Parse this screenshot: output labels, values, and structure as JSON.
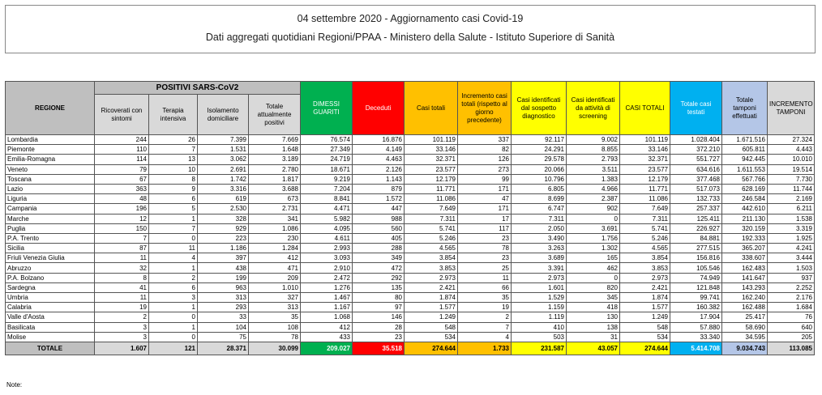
{
  "header": {
    "title": "04 settembre 2020 - Aggiornamento casi Covid-19",
    "subtitle": "Dati aggregati quotidiani Regioni/PPAA - Ministero della Salute - Istituto Superiore di Sanità"
  },
  "table": {
    "region_header": "REGIONE",
    "group_header": "POSITIVI SARS-CoV2",
    "columns": [
      "Ricoverati con sintomi",
      "Terapia intensiva",
      "Isolamento domiciliare",
      "Totale attualmente positivi",
      "DIMESSI GUARITI",
      "Deceduti",
      "Casi totali",
      "Incremento casi totali (rispetto al giorno precedente)",
      "Casi identificati dal sospetto diagnostico",
      "Casi identificati da attività di screening",
      "CASI TOTALI",
      "Totale casi testati",
      "Totale tamponi effettuati",
      "INCREMENTO TAMPONI"
    ],
    "rows": [
      [
        "Lombardia",
        "244",
        "26",
        "7.399",
        "7.669",
        "76.574",
        "16.876",
        "101.119",
        "337",
        "92.117",
        "9.002",
        "101.119",
        "1.028.404",
        "1.671.516",
        "27.324"
      ],
      [
        "Piemonte",
        "110",
        "7",
        "1.531",
        "1.648",
        "27.349",
        "4.149",
        "33.146",
        "82",
        "24.291",
        "8.855",
        "33.146",
        "372.210",
        "605.811",
        "4.443"
      ],
      [
        "Emilia-Romagna",
        "114",
        "13",
        "3.062",
        "3.189",
        "24.719",
        "4.463",
        "32.371",
        "126",
        "29.578",
        "2.793",
        "32.371",
        "551.727",
        "942.445",
        "10.010"
      ],
      [
        "Veneto",
        "79",
        "10",
        "2.691",
        "2.780",
        "18.671",
        "2.126",
        "23.577",
        "273",
        "20.066",
        "3.511",
        "23.577",
        "634.616",
        "1.611.553",
        "19.514"
      ],
      [
        "Toscana",
        "67",
        "8",
        "1.742",
        "1.817",
        "9.219",
        "1.143",
        "12.179",
        "99",
        "10.796",
        "1.383",
        "12.179",
        "377.468",
        "567.766",
        "7.730"
      ],
      [
        "Lazio",
        "363",
        "9",
        "3.316",
        "3.688",
        "7.204",
        "879",
        "11.771",
        "171",
        "6.805",
        "4.966",
        "11.771",
        "517.073",
        "628.169",
        "11.744"
      ],
      [
        "Liguria",
        "48",
        "6",
        "619",
        "673",
        "8.841",
        "1.572",
        "11.086",
        "47",
        "8.699",
        "2.387",
        "11.086",
        "132.733",
        "246.584",
        "2.169"
      ],
      [
        "Campania",
        "196",
        "5",
        "2.530",
        "2.731",
        "4.471",
        "447",
        "7.649",
        "171",
        "6.747",
        "902",
        "7.649",
        "257.337",
        "442.610",
        "6.211"
      ],
      [
        "Marche",
        "12",
        "1",
        "328",
        "341",
        "5.982",
        "988",
        "7.311",
        "17",
        "7.311",
        "0",
        "7.311",
        "125.411",
        "211.130",
        "1.538"
      ],
      [
        "Puglia",
        "150",
        "7",
        "929",
        "1.086",
        "4.095",
        "560",
        "5.741",
        "117",
        "2.050",
        "3.691",
        "5.741",
        "226.927",
        "320.159",
        "3.319"
      ],
      [
        "P.A. Trento",
        "7",
        "0",
        "223",
        "230",
        "4.611",
        "405",
        "5.246",
        "23",
        "3.490",
        "1.756",
        "5.246",
        "84.881",
        "192.333",
        "1.925"
      ],
      [
        "Sicilia",
        "87",
        "11",
        "1.186",
        "1.284",
        "2.993",
        "288",
        "4.565",
        "78",
        "3.263",
        "1.302",
        "4.565",
        "277.515",
        "365.207",
        "4.241"
      ],
      [
        "Friuli Venezia Giulia",
        "11",
        "4",
        "397",
        "412",
        "3.093",
        "349",
        "3.854",
        "23",
        "3.689",
        "165",
        "3.854",
        "156.816",
        "338.607",
        "3.444"
      ],
      [
        "Abruzzo",
        "32",
        "1",
        "438",
        "471",
        "2.910",
        "472",
        "3.853",
        "25",
        "3.391",
        "462",
        "3.853",
        "105.546",
        "162.483",
        "1.503"
      ],
      [
        "P.A. Bolzano",
        "8",
        "2",
        "199",
        "209",
        "2.472",
        "292",
        "2.973",
        "11",
        "2.973",
        "0",
        "2.973",
        "74.949",
        "141.647",
        "937"
      ],
      [
        "Sardegna",
        "41",
        "6",
        "963",
        "1.010",
        "1.276",
        "135",
        "2.421",
        "66",
        "1.601",
        "820",
        "2.421",
        "121.848",
        "143.293",
        "2.252"
      ],
      [
        "Umbria",
        "11",
        "3",
        "313",
        "327",
        "1.467",
        "80",
        "1.874",
        "35",
        "1.529",
        "345",
        "1.874",
        "99.741",
        "162.240",
        "2.176"
      ],
      [
        "Calabria",
        "19",
        "1",
        "293",
        "313",
        "1.167",
        "97",
        "1.577",
        "19",
        "1.159",
        "418",
        "1.577",
        "160.382",
        "162.488",
        "1.684"
      ],
      [
        "Valle d'Aosta",
        "2",
        "0",
        "33",
        "35",
        "1.068",
        "146",
        "1.249",
        "2",
        "1.119",
        "130",
        "1.249",
        "17.904",
        "25.417",
        "76"
      ],
      [
        "Basilicata",
        "3",
        "1",
        "104",
        "108",
        "412",
        "28",
        "548",
        "7",
        "410",
        "138",
        "548",
        "57.880",
        "58.690",
        "640"
      ],
      [
        "Molise",
        "3",
        "0",
        "75",
        "78",
        "433",
        "23",
        "534",
        "4",
        "503",
        "31",
        "534",
        "33.340",
        "34.595",
        "205"
      ]
    ],
    "total": [
      "TOTALE",
      "1.607",
      "121",
      "28.371",
      "30.099",
      "209.027",
      "35.518",
      "274.644",
      "1.733",
      "231.587",
      "43.057",
      "274.644",
      "5.414.708",
      "9.034.743",
      "113.085"
    ]
  },
  "note": "Note:"
}
